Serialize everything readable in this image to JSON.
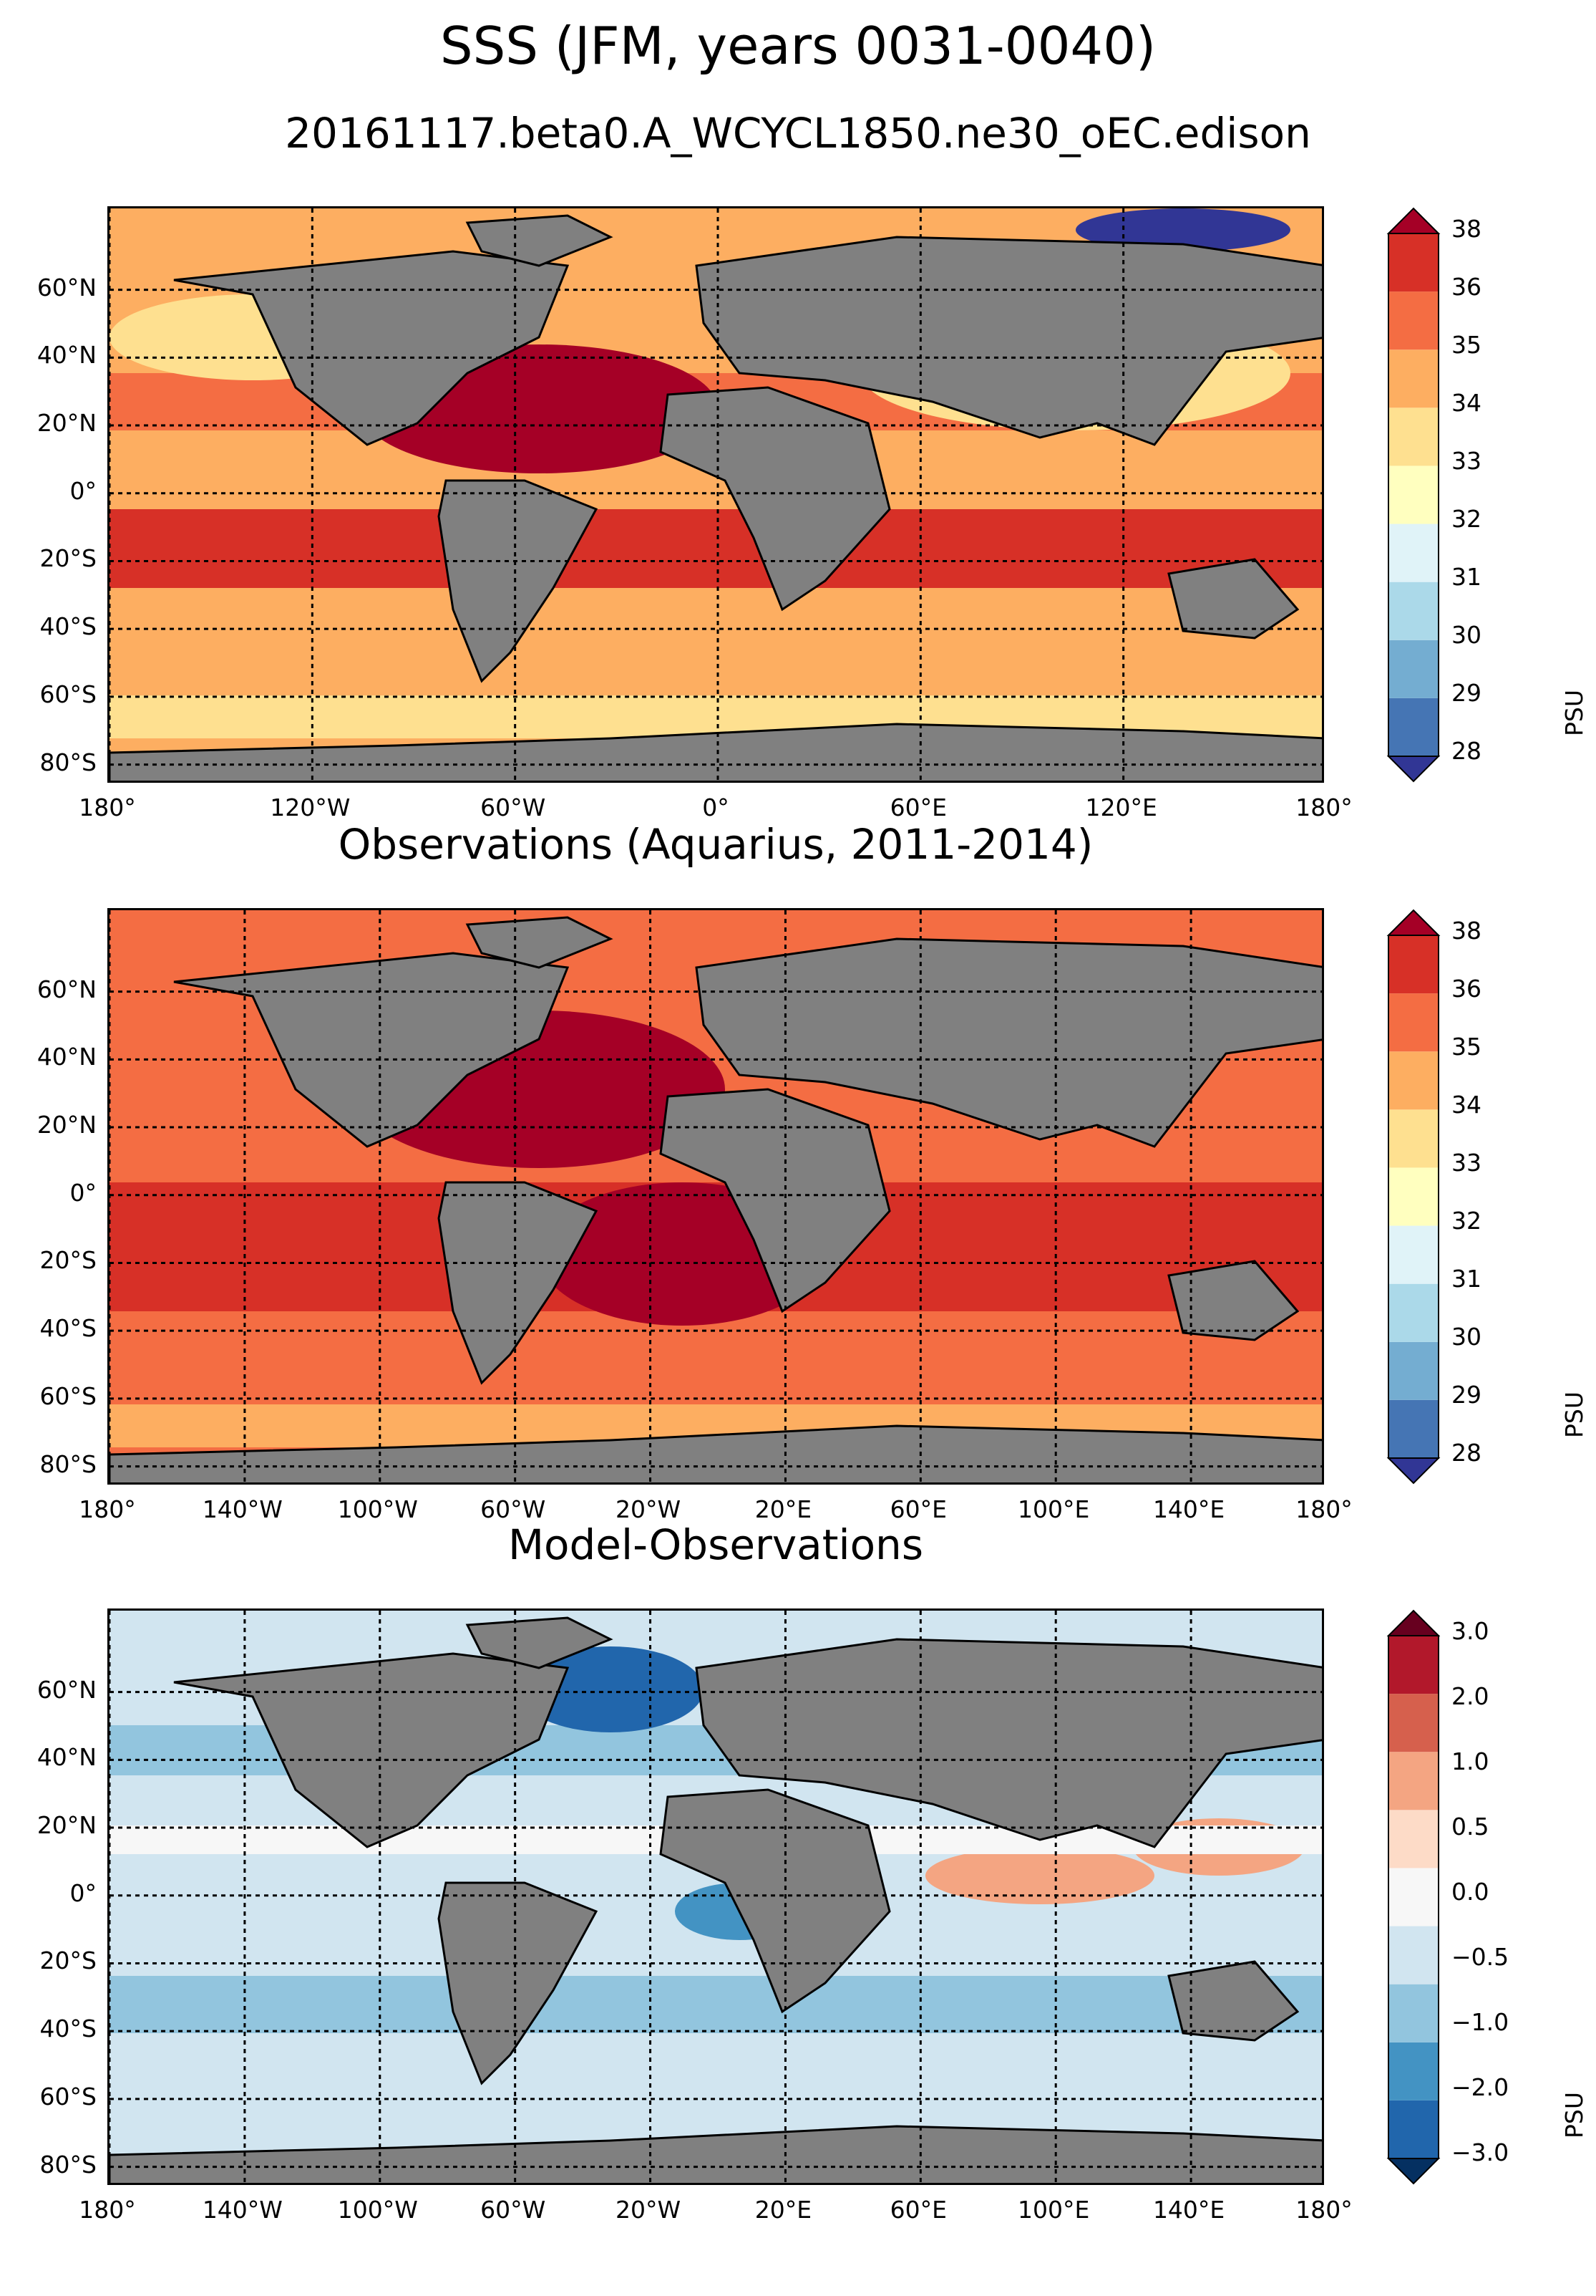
{
  "title": "SSS (JFM, years 0031-0040)",
  "subtitle": "20161117.beta0.A_WCYCL1850.ne30_oEC.edison",
  "lat_labels": [
    "60°N",
    "40°N",
    "20°N",
    "0°",
    "20°S",
    "40°S",
    "60°S",
    "80°S"
  ],
  "colors": {
    "land": "#808080",
    "sss_levels": [
      "#313695",
      "#4575b4",
      "#74add1",
      "#abd9e9",
      "#e0f3f8",
      "#ffffbf",
      "#fee090",
      "#fdae61",
      "#f46d43",
      "#d73027",
      "#a50026"
    ],
    "diff_levels": [
      "#053061",
      "#2166ac",
      "#4393c3",
      "#92c5de",
      "#d1e5f0",
      "#f7f7f7",
      "#fddbc7",
      "#f4a582",
      "#d6604d",
      "#b2182b",
      "#67001f"
    ]
  },
  "panels": [
    {
      "title": "",
      "lon_labels": [
        "180°",
        "120°W",
        "60°W",
        "0°",
        "60°E",
        "120°E",
        "180°"
      ],
      "colorbar": {
        "label": "PSU",
        "ticks": [
          "28",
          "29",
          "30",
          "31",
          "32",
          "33",
          "34",
          "35",
          "36",
          "38"
        ]
      }
    },
    {
      "title": "Observations (Aquarius, 2011-2014)",
      "lon_labels": [
        "180°",
        "140°W",
        "100°W",
        "60°W",
        "20°W",
        "20°E",
        "60°E",
        "100°E",
        "140°E",
        "180°"
      ],
      "colorbar": {
        "label": "PSU",
        "ticks": [
          "28",
          "29",
          "30",
          "31",
          "32",
          "33",
          "34",
          "35",
          "36",
          "38"
        ]
      }
    },
    {
      "title": "Model-Observations",
      "lon_labels": [
        "180°",
        "140°W",
        "100°W",
        "60°W",
        "20°W",
        "20°E",
        "60°E",
        "100°E",
        "140°E",
        "180°"
      ],
      "colorbar": {
        "label": "PSU",
        "ticks": [
          "−3.0",
          "−2.0",
          "−1.0",
          "−0.5",
          "0.0",
          "0.5",
          "1.0",
          "2.0",
          "3.0"
        ]
      }
    }
  ]
}
